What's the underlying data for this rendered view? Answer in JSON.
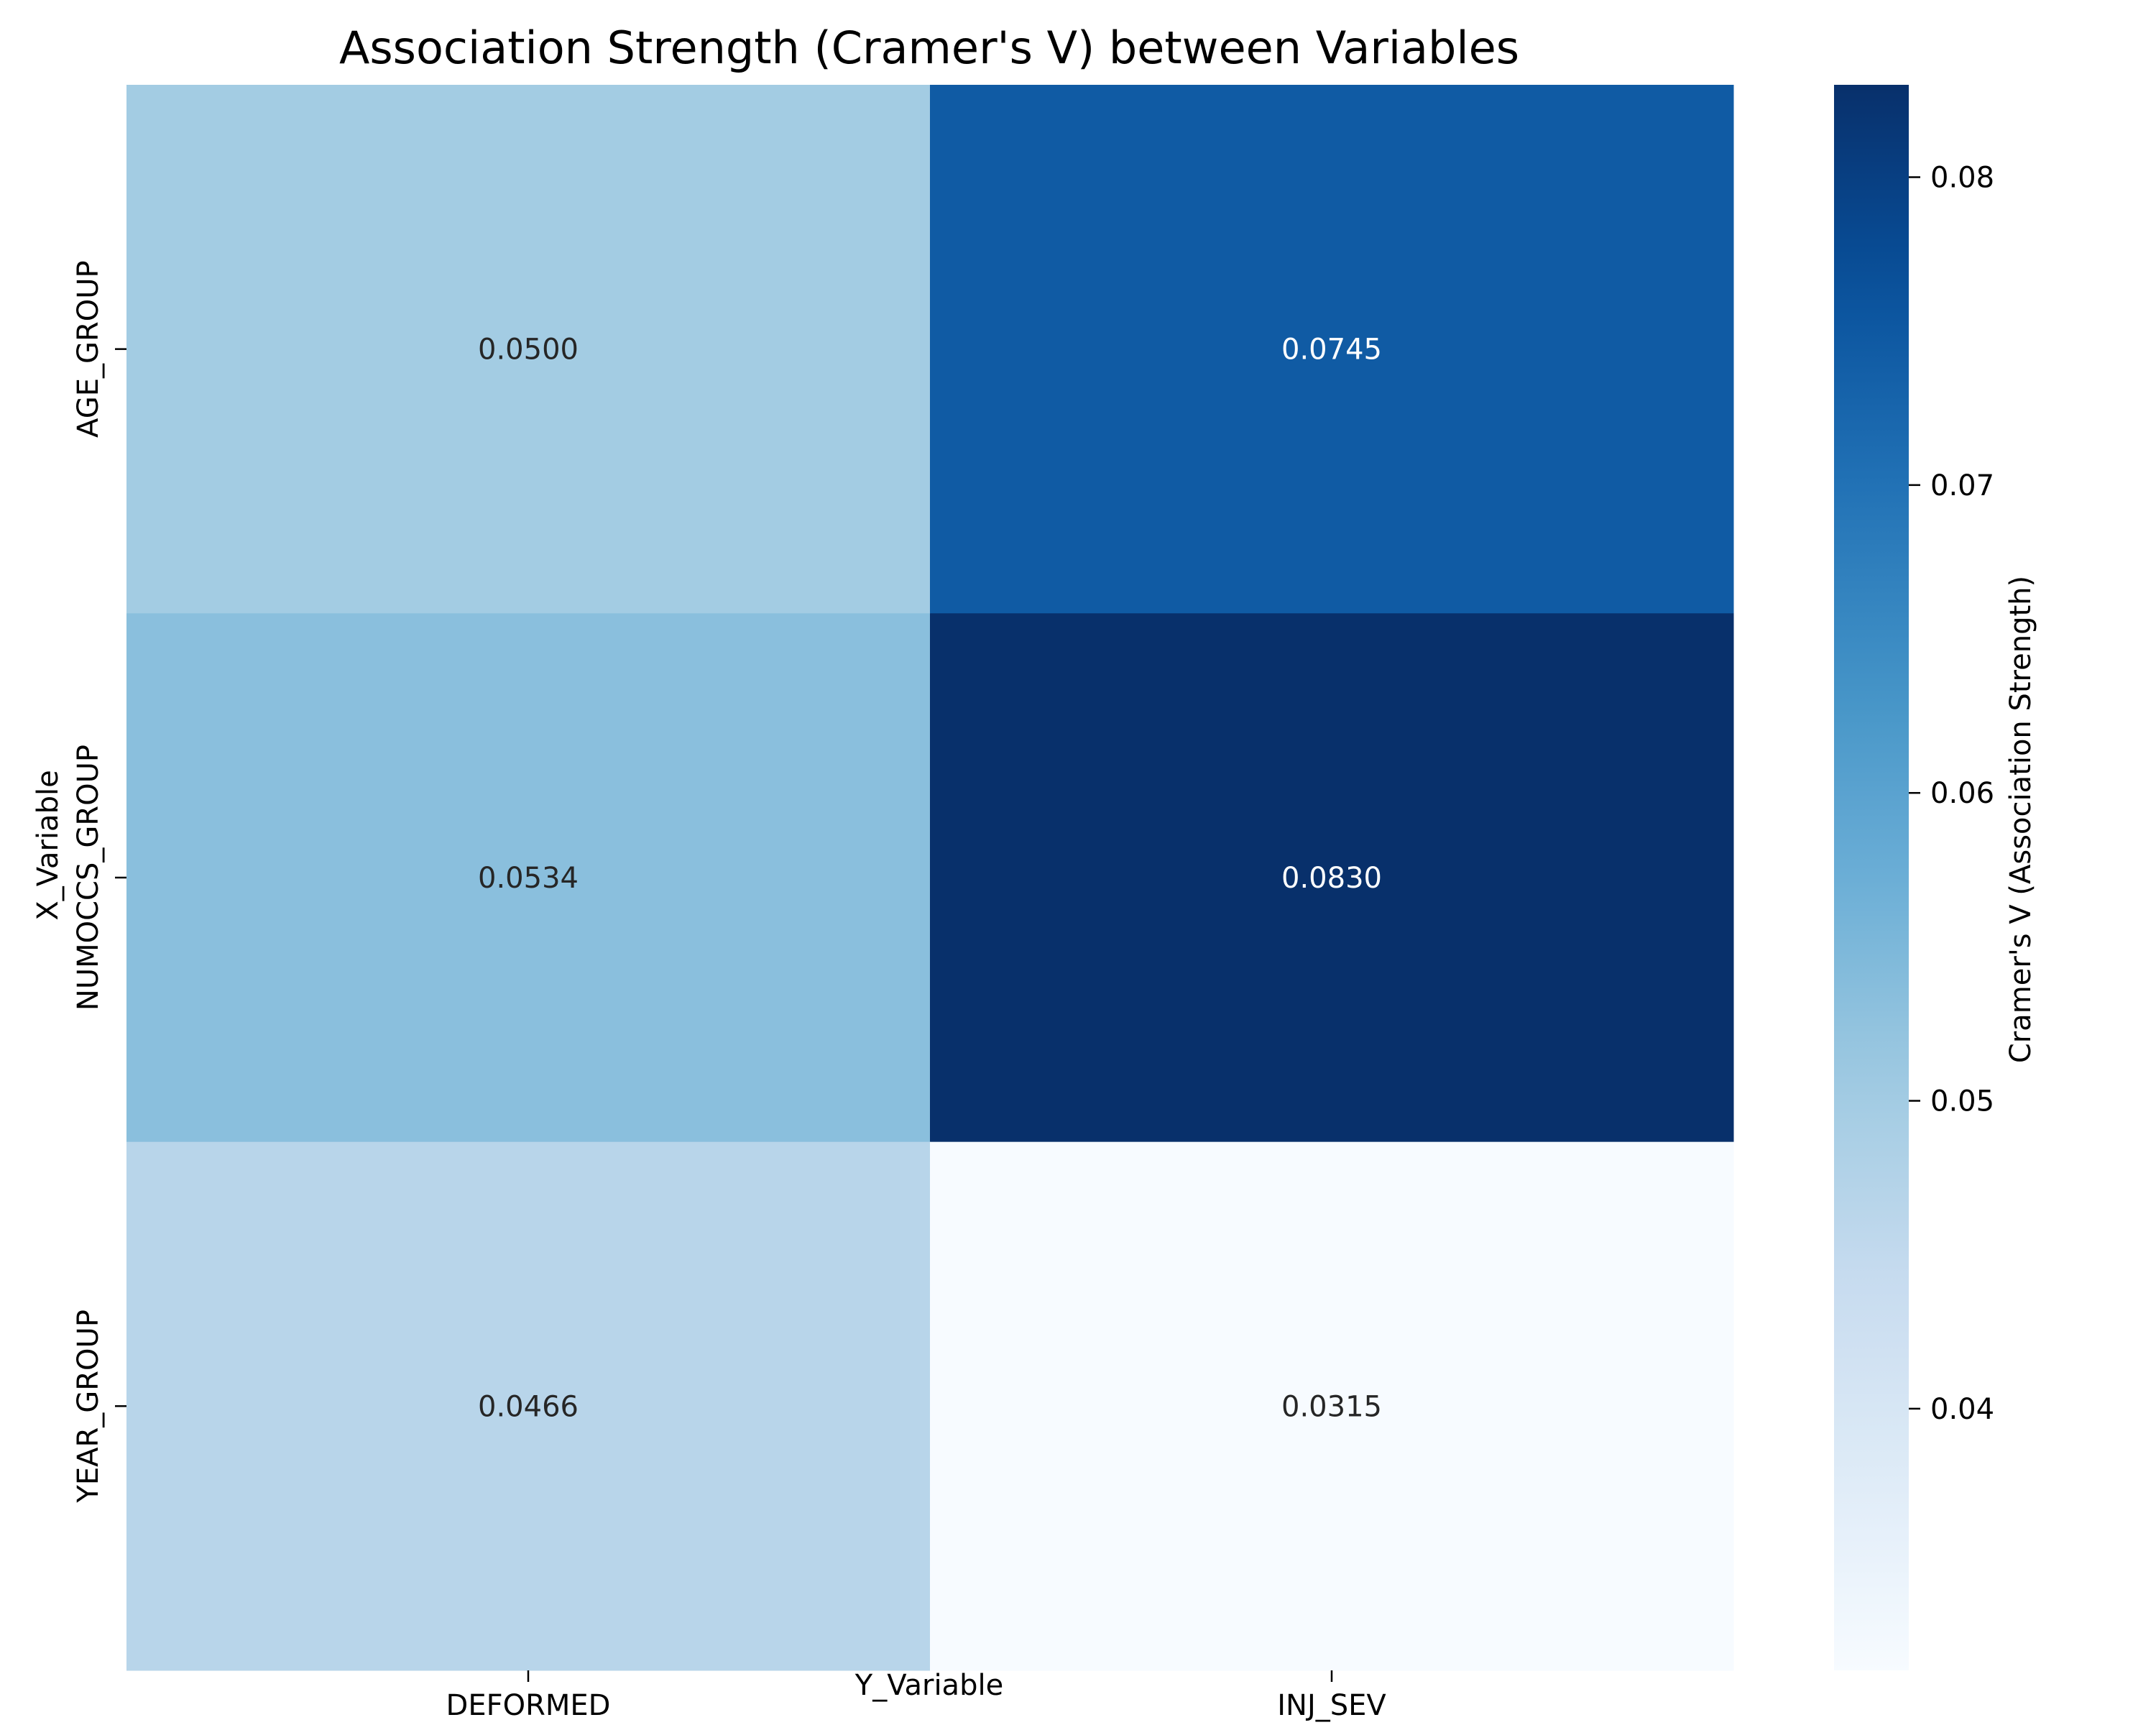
{
  "chart_data": {
    "type": "heatmap",
    "title": "Association Strength (Cramer's V) between Variables",
    "xlabel": "Y_Variable",
    "ylabel": "X_Variable",
    "x_categories": [
      "DEFORMED",
      "INJ_SEV"
    ],
    "y_categories": [
      "AGE_GROUP",
      "NUMOCCS_GROUP",
      "YEAR_GROUP"
    ],
    "values": [
      [
        0.05,
        0.0745
      ],
      [
        0.0534,
        0.083
      ],
      [
        0.0466,
        0.0315
      ]
    ],
    "cell_labels": [
      [
        "0.0500",
        "0.0745"
      ],
      [
        "0.0534",
        "0.0830"
      ],
      [
        "0.0466",
        "0.0315"
      ]
    ],
    "colormap": "Blues",
    "vmin": 0.0315,
    "vmax": 0.083,
    "colorbar": {
      "label": "Cramer's V (Association Strength)",
      "ticks": [
        0.04,
        0.05,
        0.06,
        0.07,
        0.08
      ],
      "tick_labels": [
        "0.04",
        "0.05",
        "0.06",
        "0.07",
        "0.08"
      ]
    },
    "grid": false,
    "legend": "colorbar-right"
  }
}
